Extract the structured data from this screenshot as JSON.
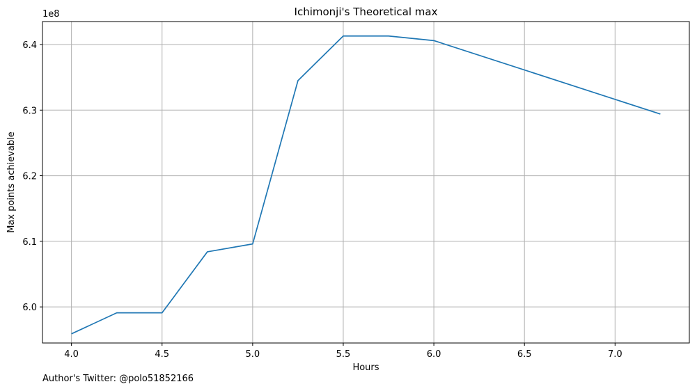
{
  "chart_data": {
    "type": "line",
    "title": "Ichimonji's Theoretical max",
    "xlabel": "Hours",
    "ylabel": "Max points achievable",
    "y_offset_label": "1e8",
    "y_scale": 100000000,
    "xlim": [
      3.84,
      7.41
    ],
    "ylim": [
      5.945,
      6.435
    ],
    "xticks": [
      4.0,
      4.5,
      5.0,
      5.5,
      6.0,
      6.5,
      7.0
    ],
    "xtick_labels": [
      "4.0",
      "4.5",
      "5.0",
      "5.5",
      "6.0",
      "6.5",
      "7.0"
    ],
    "yticks": [
      6.0,
      6.1,
      6.2,
      6.3,
      6.4
    ],
    "ytick_labels": [
      "6.0",
      "6.1",
      "6.2",
      "6.3",
      "6.4"
    ],
    "grid": true,
    "line_color": "#1f77b4",
    "grid_color": "#b0b0b0",
    "series": [
      {
        "x": [
          4.0,
          4.25,
          4.5,
          4.75,
          5.0,
          5.25,
          5.5,
          5.75,
          6.0,
          7.25
        ],
        "y": [
          5.959,
          5.991,
          5.991,
          6.084,
          6.096,
          6.345,
          6.413,
          6.413,
          6.406,
          6.294
        ]
      }
    ]
  },
  "footnote": "Author's Twitter: @polo51852166"
}
